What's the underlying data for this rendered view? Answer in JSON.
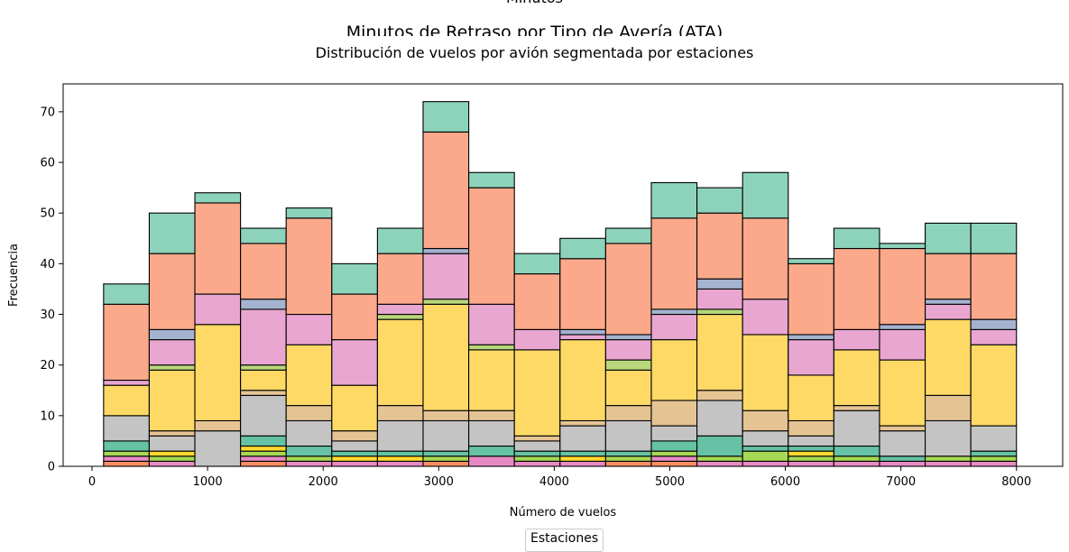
{
  "background_figure": {
    "top_text": "Minutos",
    "title": "Minutos de Retraso por Tipo de Avería (ATA)"
  },
  "chart_data": {
    "type": "bar",
    "subtype": "stacked-histogram",
    "title": "Distribución de vuelos por avión segmentada por estaciones",
    "xlabel": "Número de vuelos",
    "ylabel": "Frecuencia",
    "xlim": [
      -250,
      8400
    ],
    "ylim": [
      0,
      75.5
    ],
    "xticks": [
      0,
      1000,
      2000,
      3000,
      4000,
      5000,
      6000,
      7000,
      8000
    ],
    "yticks": [
      0,
      10,
      20,
      30,
      40,
      50,
      60,
      70
    ],
    "grid": false,
    "legend": {
      "title": "Estaciones",
      "placement": "bottom-center",
      "entries": []
    },
    "bin_edges": [
      100,
      495,
      890,
      1285,
      1680,
      2075,
      2470,
      2865,
      3260,
      3655,
      4050,
      4445,
      4840,
      5235,
      5630,
      6025,
      6420,
      6815,
      7210,
      7605,
      8000
    ],
    "layer_colors": [
      "#fc8d62",
      "#e78ac3",
      "#a6d854",
      "#ffd92f",
      "#66c2a5",
      "#b3b3b3",
      "#c4c4c4",
      "#e5c494",
      "#e6c9a8",
      "#ffd966",
      "#b8d67a",
      "#e8a6d0",
      "#a5b3d0",
      "#fba98a",
      "#8dd3bb"
    ],
    "series": [
      {
        "values": [
          1,
          0,
          0,
          1,
          0,
          0,
          0,
          1,
          0,
          0,
          0,
          1,
          1,
          0,
          0,
          0,
          0,
          0,
          0,
          0
        ]
      },
      {
        "values": [
          1,
          1,
          0,
          1,
          1,
          1,
          1,
          0,
          2,
          1,
          1,
          0,
          1,
          1,
          1,
          1,
          1,
          1,
          1,
          1
        ]
      },
      {
        "values": [
          1,
          1,
          0,
          1,
          1,
          0,
          0,
          1,
          0,
          1,
          0,
          1,
          1,
          1,
          2,
          1,
          1,
          0,
          1,
          1
        ]
      },
      {
        "values": [
          0,
          1,
          0,
          1,
          0,
          1,
          1,
          0,
          0,
          0,
          1,
          0,
          0,
          0,
          0,
          1,
          0,
          0,
          0,
          0
        ]
      },
      {
        "values": [
          2,
          0,
          0,
          2,
          2,
          1,
          1,
          1,
          2,
          1,
          1,
          1,
          2,
          4,
          1,
          1,
          2,
          1,
          0,
          1
        ]
      },
      {
        "values": [
          0,
          0,
          0,
          0,
          0,
          0,
          0,
          0,
          0,
          0,
          0,
          0,
          0,
          0,
          0,
          0,
          0,
          0,
          0,
          0
        ]
      },
      {
        "values": [
          5,
          3,
          7,
          8,
          5,
          2,
          6,
          6,
          5,
          2,
          5,
          6,
          3,
          7,
          3,
          2,
          7,
          5,
          7,
          5
        ]
      },
      {
        "values": [
          0,
          1,
          2,
          1,
          3,
          2,
          3,
          2,
          2,
          1,
          1,
          3,
          5,
          2,
          4,
          3,
          1,
          1,
          5,
          0
        ]
      },
      {
        "values": [
          0,
          0,
          0,
          0,
          0,
          0,
          0,
          0,
          0,
          0,
          0,
          0,
          0,
          0,
          0,
          0,
          0,
          0,
          0,
          0
        ]
      },
      {
        "values": [
          6,
          12,
          19,
          4,
          12,
          9,
          17,
          21,
          12,
          17,
          16,
          7,
          12,
          15,
          15,
          9,
          11,
          13,
          15,
          16
        ]
      },
      {
        "values": [
          0,
          1,
          0,
          1,
          0,
          0,
          1,
          1,
          1,
          0,
          0,
          2,
          0,
          1,
          0,
          0,
          0,
          0,
          0,
          0
        ]
      },
      {
        "values": [
          1,
          5,
          6,
          11,
          6,
          9,
          2,
          9,
          8,
          4,
          1,
          4,
          5,
          4,
          7,
          7,
          4,
          6,
          3,
          3
        ]
      },
      {
        "values": [
          0,
          2,
          0,
          2,
          0,
          0,
          0,
          1,
          0,
          0,
          1,
          1,
          1,
          2,
          0,
          1,
          0,
          1,
          1,
          2
        ]
      },
      {
        "values": [
          15,
          15,
          18,
          11,
          19,
          9,
          10,
          23,
          23,
          11,
          14,
          18,
          18,
          13,
          16,
          14,
          16,
          15,
          9,
          13
        ]
      },
      {
        "values": [
          4,
          8,
          2,
          3,
          2,
          6,
          5,
          6,
          3,
          4,
          4,
          3,
          7,
          5,
          9,
          1,
          4,
          1,
          6,
          6
        ]
      }
    ]
  }
}
